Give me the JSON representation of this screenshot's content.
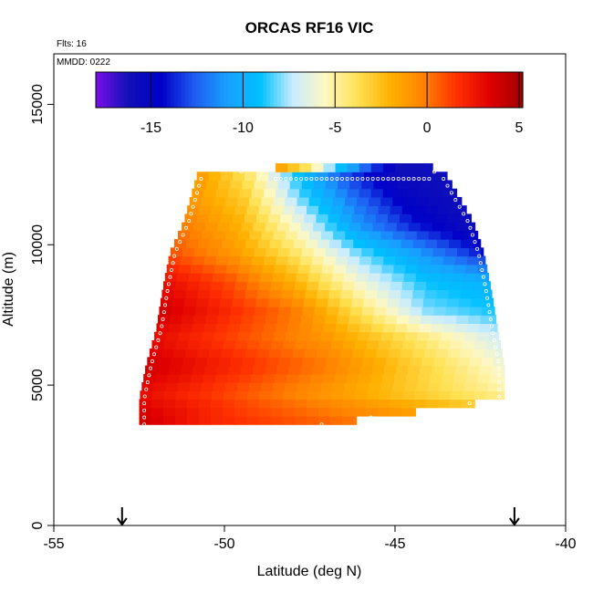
{
  "chart_data": {
    "type": "heatmap",
    "title": "ORCAS RF16 VIC",
    "note_flights": "Flts: 16",
    "note_date": "MMDD: 0222",
    "xlabel": "Latitude (deg N)",
    "ylabel": "Altitude (m)",
    "xlim": [
      -55,
      -40
    ],
    "ylim": [
      0,
      16800
    ],
    "x_ticks": [
      -55,
      -50,
      -45,
      -40
    ],
    "x_tick_labels": [
      "-55",
      "-50",
      "-45",
      "-40"
    ],
    "y_ticks": [
      0,
      5000,
      10000,
      15000
    ],
    "y_tick_labels": [
      "0",
      "5000",
      "10000",
      "15000"
    ],
    "colorbar": {
      "range": [
        -18,
        5.2
      ],
      "ticks": [
        -15,
        -10,
        -5,
        0,
        5
      ],
      "tick_labels": [
        "-15",
        "-10",
        "-5",
        "0",
        "5"
      ],
      "colors": [
        "#7a10e8",
        "#1010b8",
        "#0000c8",
        "#1e5cf0",
        "#18a0ff",
        "#00c0ff",
        "#c8ecff",
        "#fff8c0",
        "#ffe050",
        "#ffb000",
        "#ff8000",
        "#ff3000",
        "#e00000",
        "#a00000"
      ]
    },
    "markers": {
      "arrow_latitudes": [
        -53,
        -41.5
      ]
    },
    "profile_edges": [
      {
        "altitude": 3600,
        "lat_min": -52.5,
        "lat_max": -47.0
      },
      {
        "altitude": 4500,
        "lat_min": -52.5,
        "lat_max": -41.8
      },
      {
        "altitude": 5700,
        "lat_min": -52.3,
        "lat_max": -41.8
      },
      {
        "altitude": 7000,
        "lat_min": -52.0,
        "lat_max": -42.0
      },
      {
        "altitude": 8500,
        "lat_min": -51.8,
        "lat_max": -42.2
      },
      {
        "altitude": 9700,
        "lat_min": -51.6,
        "lat_max": -42.4
      },
      {
        "altitude": 10800,
        "lat_min": -51.2,
        "lat_max": -42.7
      },
      {
        "altitude": 12500,
        "lat_min": -50.8,
        "lat_max": -43.5
      },
      {
        "altitude": 12700,
        "lat_min": -48.5,
        "lat_max": -43.9
      }
    ],
    "temperature_field": {
      "description_of_values": "temperature deviation by altitude band (m) from south (lat_min) to north (lat_max)",
      "bands": [
        {
          "altitude": 3800,
          "values": [
            4,
            2,
            1,
            0
          ]
        },
        {
          "altitude": 4700,
          "values": [
            3,
            1,
            -1,
            -3,
            -5
          ]
        },
        {
          "altitude": 5700,
          "values": [
            4,
            2,
            0,
            -3,
            -6
          ]
        },
        {
          "altitude": 6700,
          "values": [
            3,
            1,
            -1,
            -4,
            -7
          ]
        },
        {
          "altitude": 7700,
          "values": [
            4,
            2,
            0,
            -4,
            -8,
            -9
          ]
        },
        {
          "altitude": 8700,
          "values": [
            3,
            1,
            -2,
            -6,
            -9,
            -10
          ]
        },
        {
          "altitude": 9700,
          "values": [
            1,
            -1,
            -4,
            -8,
            -11,
            -14
          ]
        },
        {
          "altitude": 10700,
          "values": [
            0,
            -2,
            -6,
            -11,
            -14,
            -16
          ]
        },
        {
          "altitude": 11700,
          "values": [
            -1,
            -3,
            -8,
            -12,
            -15,
            -16
          ]
        },
        {
          "altitude": 12500,
          "values": [
            -1,
            -4,
            -9,
            -13,
            -16,
            -16
          ]
        }
      ]
    }
  }
}
